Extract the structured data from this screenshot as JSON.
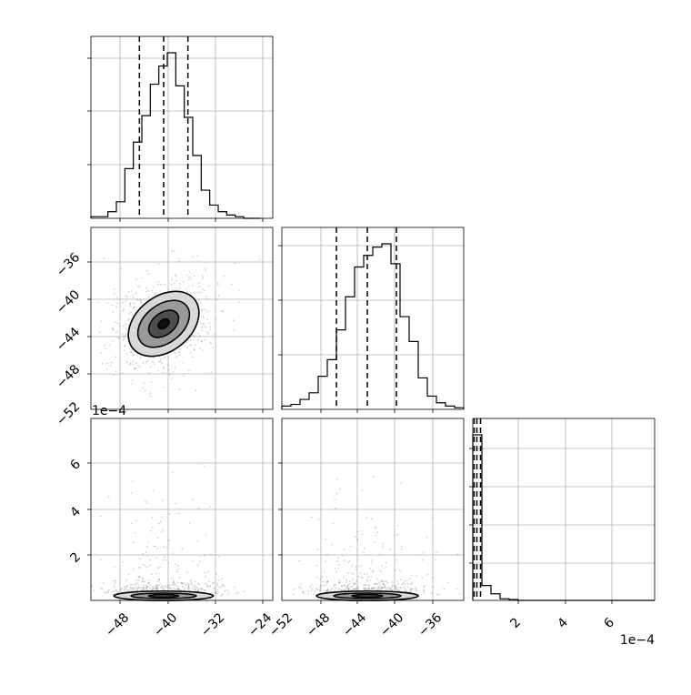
{
  "chart_data": {
    "type": "scatter",
    "style": {
      "grid": true,
      "hist_color": "#000000",
      "contour_color": "#000000",
      "scatter_color": "#7f7f7f",
      "quantile_line": "dashed"
    },
    "marginals": [
      {
        "name": "param_1",
        "type": "histogram",
        "xlim": [
          -52,
          -22
        ],
        "ylim": [
          0,
          1
        ],
        "bin_edges": [
          -52,
          -50.6,
          -49.2,
          -47.8,
          -46.4,
          -45,
          -43.6,
          -42.2,
          -40.8,
          -39.4,
          -38,
          -36.6,
          -35.2,
          -33.8,
          -32.4,
          -31,
          -29.6,
          -28.2,
          -26.8,
          -25.4,
          -24
        ],
        "counts": [
          0.01,
          0.01,
          0.04,
          0.1,
          0.3,
          0.46,
          0.62,
          0.81,
          0.92,
          1.0,
          0.8,
          0.61,
          0.38,
          0.17,
          0.08,
          0.04,
          0.02,
          0.01,
          0,
          0
        ],
        "quantiles": [
          -44,
          -40,
          -36
        ]
      },
      {
        "name": "param_2",
        "type": "histogram",
        "xlim": [
          -52,
          -32
        ],
        "ylim": [
          0,
          1
        ],
        "bin_edges": [
          -52,
          -51,
          -50,
          -49,
          -48,
          -47,
          -46,
          -45,
          -44,
          -43,
          -42,
          -41,
          -40,
          -39,
          -38,
          -37,
          -36,
          -35,
          -34,
          -33,
          -32
        ],
        "counts": [
          0.02,
          0.03,
          0.06,
          0.1,
          0.2,
          0.3,
          0.48,
          0.68,
          0.86,
          0.93,
          0.98,
          1.0,
          0.88,
          0.56,
          0.41,
          0.19,
          0.08,
          0.04,
          0.02,
          0.01
        ],
        "quantiles": [
          -46,
          -42.6,
          -39.4
        ]
      },
      {
        "name": "param_3",
        "type": "histogram",
        "xlim": [
          0,
          0.0008
        ],
        "ylim": [
          0,
          1
        ],
        "bin_edges": [
          0,
          4e-05,
          8e-05,
          0.00012,
          0.00016,
          0.0002,
          0.00024,
          0.00028,
          0.00032,
          0.00036,
          0.0004,
          0.00044,
          0.00048,
          0.00052,
          0.00056,
          0.0006,
          0.00064,
          0.00068,
          0.00072,
          0.00076,
          0.0008
        ],
        "counts": [
          1.0,
          0.09,
          0.04,
          0.01,
          0.005,
          0,
          0,
          0,
          0,
          0,
          0,
          0,
          0,
          0,
          0,
          0,
          0,
          0,
          0,
          0
        ],
        "quantiles": [
          6e-06,
          1.8e-05,
          3.4e-05
        ]
      }
    ],
    "joints": [
      {
        "x_param": "param_1",
        "y_param": "param_2",
        "xlim": [
          -52,
          -22
        ],
        "ylim": [
          -52,
          -32
        ],
        "center": [
          -40,
          -42.6
        ],
        "contour_levels": [
          {
            "rx": 6.5,
            "ry": 3.0
          },
          {
            "rx": 4.8,
            "ry": 2.1
          },
          {
            "rx": 2.8,
            "ry": 1.2
          },
          {
            "rx": 1.0,
            "ry": 0.45
          }
        ],
        "rotation_deg": -38
      },
      {
        "x_param": "param_1",
        "y_param": "param_3",
        "xlim": [
          -52,
          -22
        ],
        "ylim": [
          0,
          0.0008
        ],
        "center": [
          -40,
          2e-05
        ],
        "contour_levels": [
          {
            "rx": 8.2,
            "ry": 2.1e-05
          },
          {
            "rx": 5.4,
            "ry": 1.2e-05
          },
          {
            "rx": 2.5,
            "ry": 6e-06
          }
        ],
        "rotation_deg": 0
      },
      {
        "x_param": "param_2",
        "y_param": "param_3",
        "xlim": [
          -52,
          -32
        ],
        "ylim": [
          0,
          0.0008
        ],
        "center": [
          -42.6,
          2e-05
        ],
        "contour_levels": [
          {
            "rx": 5.6,
            "ry": 2.1e-05
          },
          {
            "rx": 3.7,
            "ry": 1.2e-05
          },
          {
            "rx": 1.7,
            "ry": 6e-06
          }
        ],
        "rotation_deg": 0
      }
    ],
    "ticks": {
      "row2_y": [
        "−36",
        "−40",
        "−44",
        "−48",
        "−52"
      ],
      "row3_y": [
        "6",
        "4",
        "2"
      ],
      "col1_x": [
        "−48",
        "−40",
        "−32",
        "−24"
      ],
      "col2_x": [
        "−52",
        "−48",
        "−44",
        "−40",
        "−36"
      ],
      "col3_x": [
        "2",
        "4",
        "6"
      ],
      "offset_y": "1e−4",
      "offset_x": "1e−4"
    }
  }
}
